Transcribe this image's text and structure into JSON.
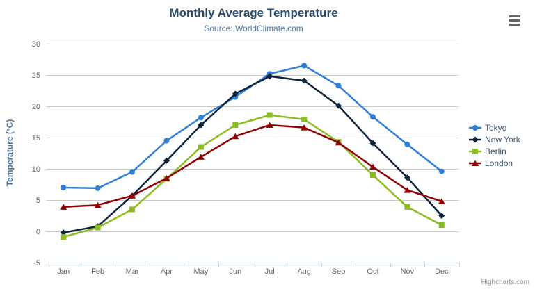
{
  "chart": {
    "credits_label": "Highcharts.com",
    "export_menu_tooltip": "Chart context menu"
  },
  "chart_data": {
    "type": "line",
    "title": "Monthly Average Temperature",
    "subtitle": "Source: WorldClimate.com",
    "categories": [
      "Jan",
      "Feb",
      "Mar",
      "Apr",
      "May",
      "Jun",
      "Jul",
      "Aug",
      "Sep",
      "Oct",
      "Nov",
      "Dec"
    ],
    "xlabel": "",
    "ylabel": "Temperature (°C)",
    "ylim": [
      -5,
      30
    ],
    "ytick_step": 5,
    "grid": true,
    "legend_position": "right",
    "series": [
      {
        "name": "Tokyo",
        "color": "#2f7ed8",
        "marker": "circle",
        "values": [
          7.0,
          6.9,
          9.5,
          14.5,
          18.2,
          21.5,
          25.2,
          26.5,
          23.3,
          18.3,
          13.9,
          9.6
        ]
      },
      {
        "name": "New York",
        "color": "#0d233a",
        "marker": "diamond",
        "values": [
          -0.2,
          0.8,
          5.7,
          11.3,
          17.0,
          22.0,
          24.8,
          24.1,
          20.1,
          14.1,
          8.6,
          2.5
        ]
      },
      {
        "name": "Berlin",
        "color": "#8bbc21",
        "marker": "square",
        "values": [
          -0.9,
          0.6,
          3.5,
          8.4,
          13.5,
          17.0,
          18.6,
          17.9,
          14.3,
          9.0,
          3.9,
          1.0
        ]
      },
      {
        "name": "London",
        "color": "#910000",
        "marker": "triangle",
        "values": [
          3.9,
          4.2,
          5.7,
          8.5,
          11.9,
          15.2,
          17.0,
          16.6,
          14.2,
          10.3,
          6.6,
          4.8
        ]
      }
    ],
    "colors": {
      "title": "#274b6d",
      "subtitle": "#4d759e",
      "axis_title": "#4d759e",
      "tick_labels": "#666666",
      "grid": "#c8c8c8",
      "axis_line": "#c0d0e0",
      "legend_text": "#3e576f",
      "credits": "#909090",
      "export_icon": "#666666",
      "background": "#ffffff"
    }
  }
}
